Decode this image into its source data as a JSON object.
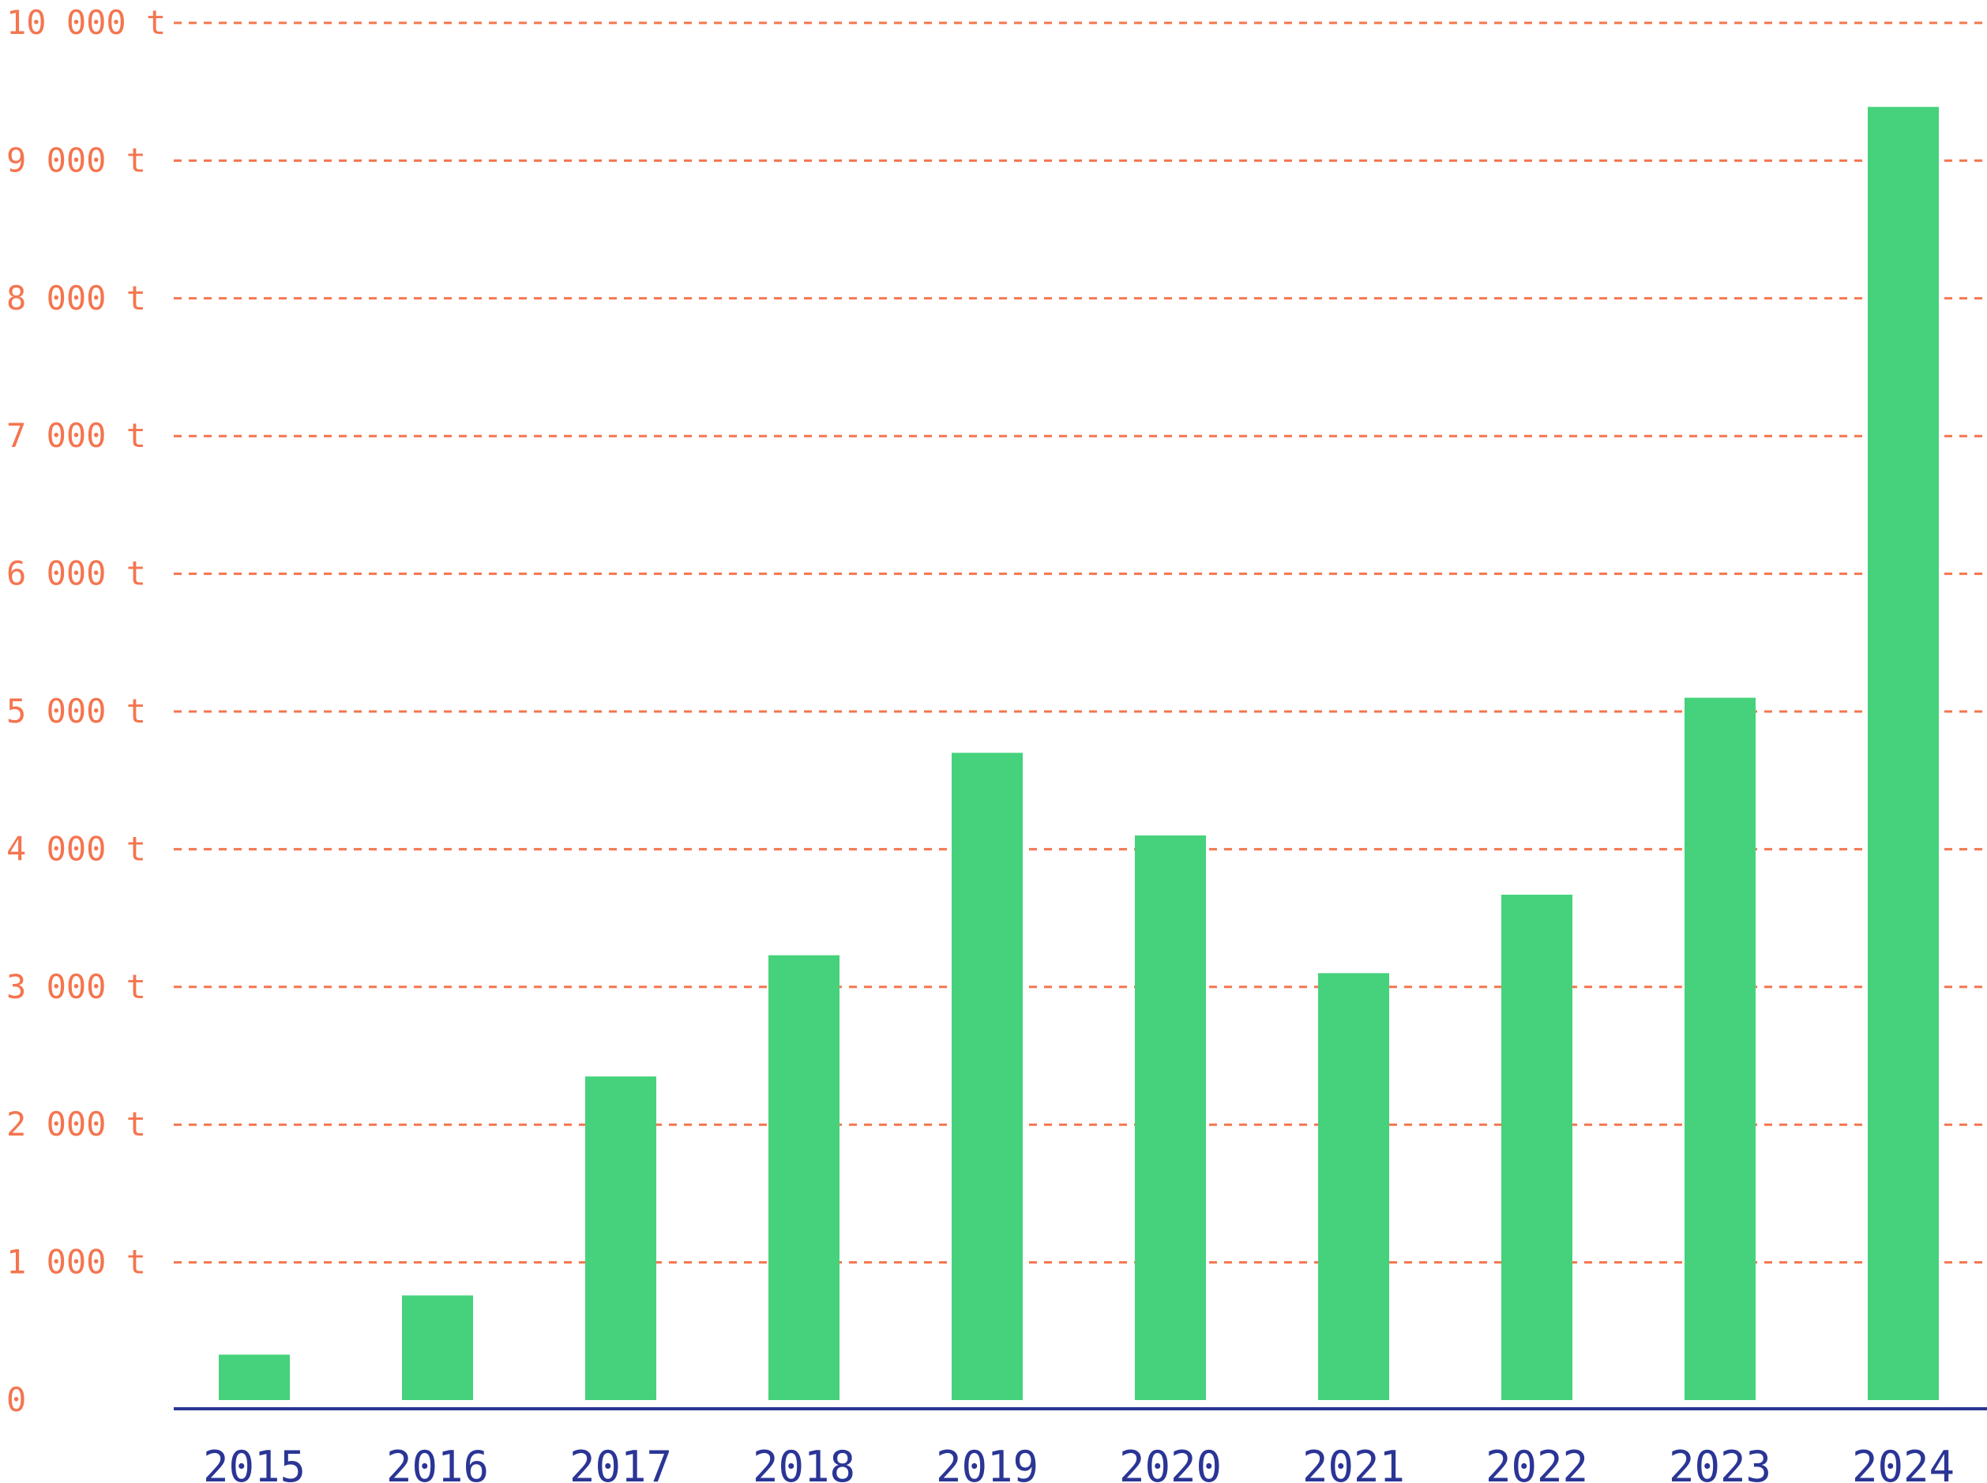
{
  "colors": {
    "bar": "#46d27c",
    "grid": "#f4754f",
    "ytick_text": "#f4754f",
    "axis": "#2a3595",
    "xtick_text": "#2a3595",
    "background": "#ffffff"
  },
  "chart_data": {
    "type": "bar",
    "title": "",
    "xlabel": "",
    "ylabel": "",
    "categories": [
      "2015",
      "2016",
      "2017",
      "2018",
      "2019",
      "2020",
      "2021",
      "2022",
      "2023",
      "2024"
    ],
    "values": [
      330,
      760,
      2350,
      3230,
      4700,
      4100,
      3100,
      3670,
      5100,
      9390
    ],
    "unit": "t",
    "ylim": [
      0,
      10000
    ],
    "yticks": [
      0,
      1000,
      2000,
      3000,
      4000,
      5000,
      6000,
      7000,
      8000,
      9000,
      10000
    ],
    "ytick_labels": [
      "0",
      "1 000 t",
      "2 000 t",
      "3 000 t",
      "4 000 t",
      "5 000 t",
      "6 000 t",
      "7 000 t",
      "8 000 t",
      "9 000 t",
      "10 000 t"
    ],
    "grid": "horizontal dashed",
    "legend": "none"
  }
}
